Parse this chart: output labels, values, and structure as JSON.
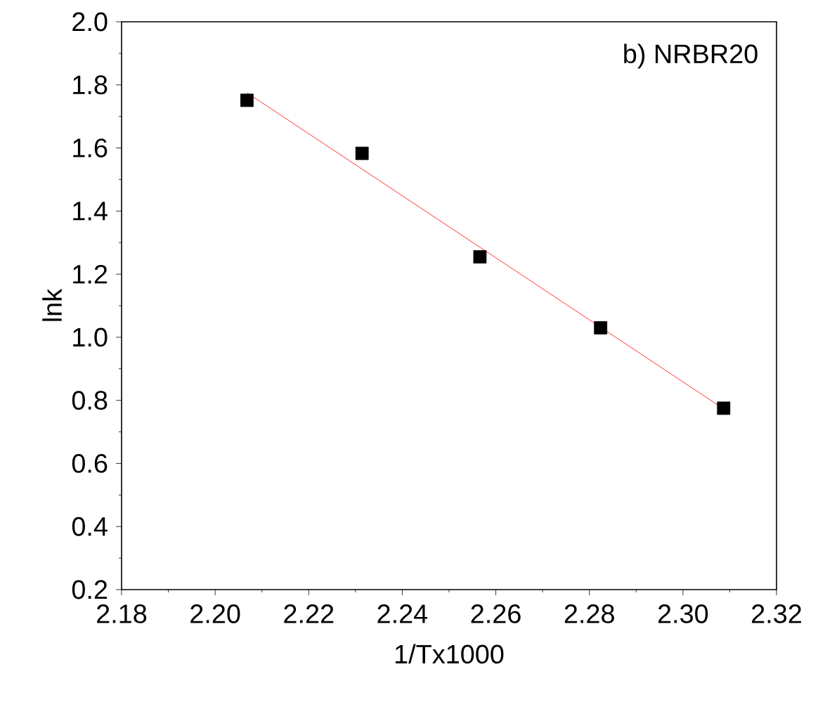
{
  "chart_data": {
    "type": "scatter",
    "xlabel": "1/Tx1000",
    "ylabel": "lnk",
    "annotations": [
      "b) NRBR20"
    ],
    "xlim": [
      2.18,
      2.32
    ],
    "ylim": [
      0.2,
      2.0
    ],
    "xticks": [
      {
        "value": 2.18,
        "label": "2.18"
      },
      {
        "value": 2.2,
        "label": "2.20"
      },
      {
        "value": 2.22,
        "label": "2.22"
      },
      {
        "value": 2.24,
        "label": "2.24"
      },
      {
        "value": 2.26,
        "label": "2.26"
      },
      {
        "value": 2.28,
        "label": "2.28"
      },
      {
        "value": 2.3,
        "label": "2.30"
      },
      {
        "value": 2.32,
        "label": "2.32"
      }
    ],
    "yticks": [
      0.2,
      0.4,
      0.6,
      0.8,
      {
        "value": 1.0,
        "label": "1.0"
      },
      1.2,
      1.4,
      1.6,
      1.8,
      {
        "value": 2.0,
        "label": "2.0"
      }
    ],
    "grid": false,
    "series": [
      {
        "marker": "square",
        "color": "#000000",
        "x": [
          2.2068,
          2.2314,
          2.2566,
          2.2824,
          2.3087
        ],
        "values": [
          1.751,
          1.583,
          1.255,
          1.03,
          0.775
        ]
      },
      {
        "type": "line",
        "color": "#ff0000",
        "x": [
          2.2068,
          2.3087
        ],
        "values": [
          1.775,
          0.773
        ]
      }
    ]
  }
}
